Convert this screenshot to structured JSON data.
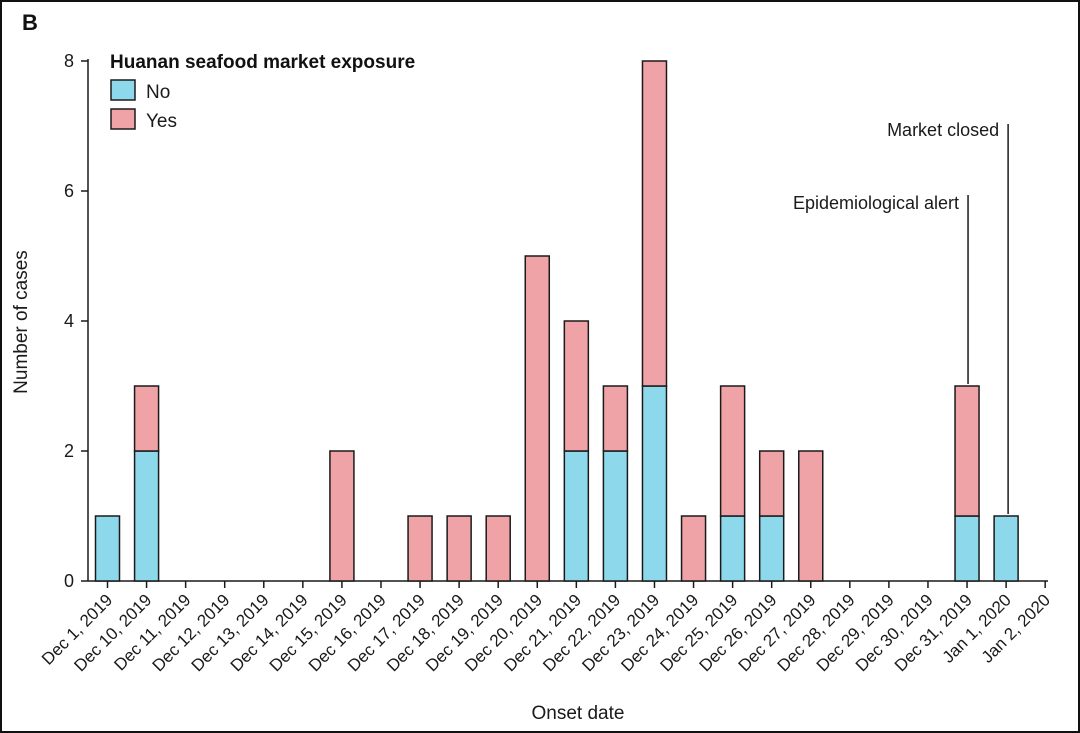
{
  "panel_label": "B",
  "colors": {
    "no": "#8ed8ec",
    "yes": "#f0a3a6",
    "stroke": "#1a1a1a"
  },
  "chart_data": {
    "type": "bar",
    "stacked": true,
    "xlabel": "Onset date",
    "ylabel": "Number of cases",
    "ylim": [
      0,
      8
    ],
    "yticks": [
      0,
      2,
      4,
      6,
      8
    ],
    "categories": [
      "Dec 1, 2019",
      "Dec 10, 2019",
      "Dec 11, 2019",
      "Dec 12, 2019",
      "Dec 13, 2019",
      "Dec 14, 2019",
      "Dec 15, 2019",
      "Dec 16, 2019",
      "Dec 17, 2019",
      "Dec 18, 2019",
      "Dec 19, 2019",
      "Dec 20, 2019",
      "Dec 21, 2019",
      "Dec 22, 2019",
      "Dec 23, 2019",
      "Dec 24, 2019",
      "Dec 25, 2019",
      "Dec 26, 2019",
      "Dec 27, 2019",
      "Dec 28, 2019",
      "Dec 29, 2019",
      "Dec 30, 2019",
      "Dec 31, 2019",
      "Jan 1, 2020",
      "Jan 2, 2020"
    ],
    "series": [
      {
        "name": "No",
        "values": [
          1,
          2,
          0,
          0,
          0,
          0,
          0,
          0,
          0,
          0,
          0,
          0,
          2,
          2,
          3,
          0,
          1,
          1,
          0,
          0,
          0,
          0,
          1,
          1,
          0
        ]
      },
      {
        "name": "Yes",
        "values": [
          0,
          1,
          0,
          0,
          0,
          0,
          2,
          0,
          1,
          1,
          1,
          5,
          2,
          1,
          5,
          1,
          2,
          1,
          2,
          0,
          0,
          0,
          2,
          0,
          0
        ]
      }
    ],
    "legend": {
      "title": "Huanan seafood market exposure",
      "position": "top-left"
    },
    "annotations": [
      {
        "label": "Epidemiological alert",
        "category": "Dec 31, 2019"
      },
      {
        "label": "Market closed",
        "category": "Jan 1, 2020"
      }
    ]
  }
}
